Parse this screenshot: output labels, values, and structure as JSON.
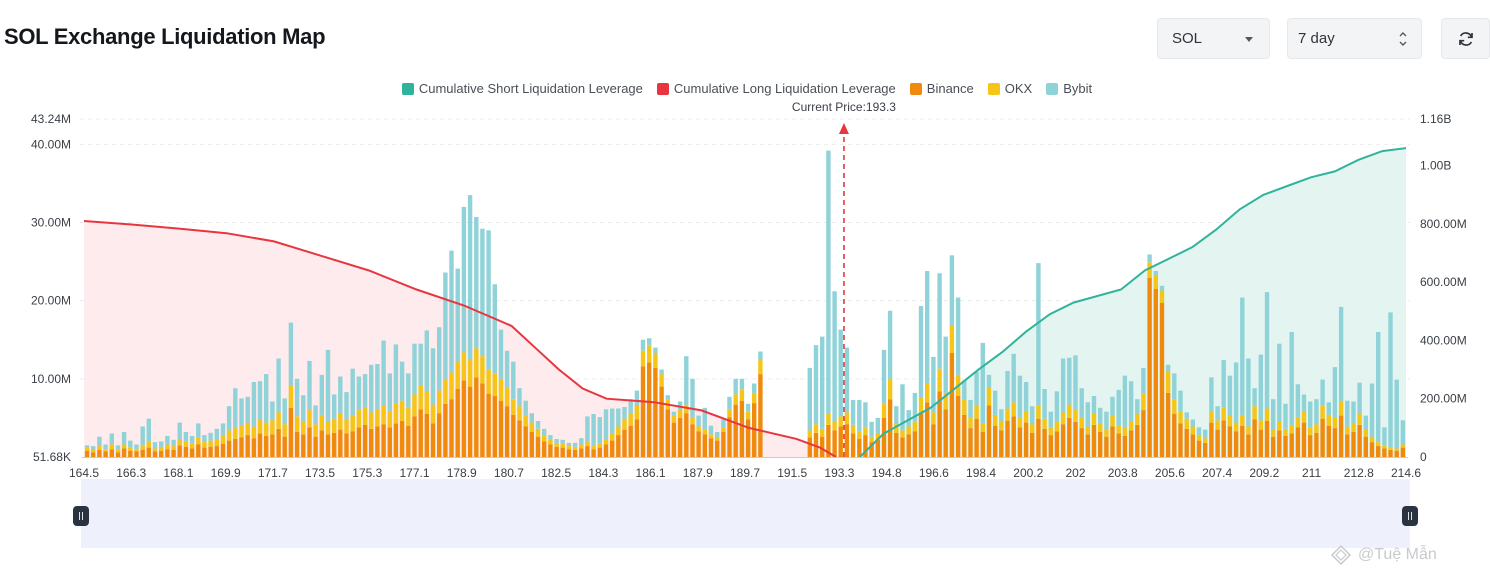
{
  "header": {
    "title": "SOL Exchange Liquidation Map",
    "symbol_value": "SOL",
    "range_value": "7 day"
  },
  "watermark": "@Tuệ Mẫn",
  "colors": {
    "short_cum": "#2fb39a",
    "long_cum": "#e8363f",
    "binance": "#f08a0d",
    "okx": "#f5c518",
    "bybit": "#8fd3d8",
    "current_price_line": "#e8363f"
  },
  "chart_data": {
    "type": "bar",
    "title": "SOL Exchange Liquidation Map",
    "legend": [
      "Cumulative Short Liquidation Leverage",
      "Cumulative Long Liquidation Leverage",
      "Binance",
      "OKX",
      "Bybit"
    ],
    "legend_position": "top-center",
    "current_price_label": "Current Price:193.3",
    "current_price": 193.3,
    "x_range": [
      164.5,
      214.6
    ],
    "x_ticks": [
      "164.5",
      "166.3",
      "168.1",
      "169.9",
      "171.7",
      "173.5",
      "175.3",
      "177.1",
      "178.9",
      "180.7",
      "182.5",
      "184.3",
      "186.1",
      "187.9",
      "189.7",
      "191.5",
      "193.3",
      "194.8",
      "196.6",
      "198.4",
      "200.2",
      "202",
      "203.8",
      "205.6",
      "207.4",
      "209.2",
      "211",
      "212.8",
      "214.6"
    ],
    "y_left_ticks": [
      "51.68K",
      "10.00M",
      "20.00M",
      "30.00M",
      "40.00M",
      "43.24M"
    ],
    "y_left_range": [
      0,
      43.24
    ],
    "y_left_unit": "M",
    "y_right_ticks": [
      "0",
      "200.00M",
      "400.00M",
      "600.00M",
      "800.00M",
      "1.00B",
      "1.16B"
    ],
    "y_right_range": [
      0,
      1160
    ],
    "y_right_unit": "M",
    "bars": {
      "binance": [
        0.8,
        0.6,
        0.9,
        0.7,
        1.0,
        0.6,
        1.1,
        0.8,
        0.7,
        0.9,
        1.2,
        0.7,
        0.8,
        1.0,
        0.9,
        1.5,
        1.3,
        1.1,
        1.6,
        1.2,
        1.3,
        1.4,
        1.7,
        2.1,
        2.3,
        2.5,
        2.8,
        2.4,
        3.0,
        2.7,
        2.9,
        3.6,
        2.6,
        6.3,
        3.2,
        2.9,
        3.8,
        2.6,
        3.4,
        2.9,
        3.1,
        3.5,
        3.0,
        3.3,
        3.8,
        4.1,
        3.6,
        3.9,
        4.2,
        3.8,
        4.3,
        4.6,
        4.0,
        5.2,
        6.1,
        5.5,
        4.3,
        5.6,
        6.8,
        7.4,
        8.7,
        9.8,
        9.0,
        10.2,
        9.4,
        8.1,
        7.8,
        7.2,
        6.5,
        5.4,
        4.7,
        3.9,
        3.2,
        2.6,
        2.0,
        1.6,
        1.3,
        1.2,
        1.0,
        0.9,
        1.1,
        1.4,
        1.0,
        1.2,
        1.6,
        2.1,
        2.8,
        3.5,
        4.0,
        4.8,
        11.6,
        12.1,
        11.4,
        9.0,
        6.1,
        4.4,
        5.0,
        5.6,
        4.2,
        3.3,
        2.9,
        2.4,
        2.1,
        3.2,
        5.1,
        6.7,
        7.2,
        4.8,
        6.9,
        10.6,
        0.0,
        0.0,
        0.0,
        0.0,
        0.0,
        0.0,
        0.0,
        2.5,
        3.1,
        2.6,
        4.1,
        3.4,
        3.9,
        4.2,
        3.0,
        2.3,
        2.8,
        1.9,
        2.2,
        5.0,
        7.4,
        3.1,
        2.5,
        2.9,
        3.3,
        5.6,
        7.0,
        4.2,
        8.4,
        6.1,
        13.3,
        7.8,
        5.4,
        3.7,
        4.9,
        3.2,
        6.6,
        4.0,
        3.4,
        4.6,
        5.2,
        3.8,
        4.4,
        3.1,
        4.9,
        3.6,
        2.8,
        3.3,
        4.2,
        5.0,
        4.5,
        3.7,
        2.9,
        4.1,
        3.2,
        2.6,
        3.9,
        3.0,
        2.7,
        3.4,
        4.1,
        6.0,
        22.9,
        21.5,
        19.7,
        8.2,
        5.5,
        4.3,
        3.6,
        2.9,
        2.1,
        1.8,
        4.4,
        3.5,
        4.7,
        3.9,
        3.3,
        4.0,
        2.9,
        4.8,
        3.5,
        4.6,
        2.6,
        3.4,
        2.7,
        3.0,
        3.8,
        4.4,
        2.8,
        3.1,
        4.9,
        4.0,
        3.7,
        5.3,
        2.9,
        3.2,
        4.1,
        2.6,
        1.9,
        1.4,
        1.1,
        0.9,
        0.8,
        1.2
      ],
      "okx": [
        0.4,
        0.3,
        0.5,
        0.3,
        0.6,
        0.4,
        0.5,
        0.4,
        0.3,
        0.6,
        0.8,
        0.4,
        0.5,
        0.6,
        0.5,
        0.8,
        0.7,
        0.6,
        0.9,
        0.7,
        0.8,
        0.9,
        1.0,
        1.3,
        1.4,
        1.6,
        1.6,
        1.5,
        1.8,
        1.7,
        1.8,
        2.1,
        1.6,
        2.8,
        2.0,
        1.7,
        2.2,
        1.6,
        2.0,
        1.7,
        1.8,
        2.0,
        1.8,
        2.0,
        2.2,
        2.3,
        2.1,
        2.2,
        2.4,
        2.1,
        2.5,
        2.6,
        2.3,
        2.8,
        3.0,
        2.9,
        2.4,
        2.9,
        3.2,
        3.4,
        3.5,
        3.6,
        3.4,
        3.7,
        3.5,
        3.1,
        2.9,
        2.7,
        2.4,
        2.0,
        1.8,
        1.5,
        1.2,
        1.0,
        0.8,
        0.6,
        0.5,
        0.5,
        0.4,
        0.4,
        0.5,
        0.6,
        0.4,
        0.5,
        0.7,
        0.9,
        1.1,
        1.4,
        1.6,
        1.8,
        2.0,
        2.2,
        1.9,
        1.6,
        1.2,
        0.9,
        1.0,
        1.1,
        0.8,
        0.6,
        0.6,
        0.5,
        0.4,
        0.6,
        1.0,
        1.3,
        1.4,
        1.0,
        1.3,
        1.8,
        0.0,
        0.0,
        0.0,
        0.0,
        0.0,
        0.0,
        0.0,
        0.9,
        1.1,
        1.0,
        1.4,
        1.2,
        1.3,
        1.5,
        1.1,
        0.9,
        1.0,
        0.7,
        0.8,
        1.8,
        2.6,
        1.1,
        0.9,
        1.0,
        1.2,
        2.0,
        2.4,
        1.5,
        2.9,
        2.1,
        3.6,
        2.7,
        1.9,
        1.3,
        1.7,
        1.1,
        2.3,
        1.4,
        1.2,
        1.6,
        1.8,
        1.3,
        1.5,
        1.1,
        1.7,
        1.3,
        1.0,
        1.2,
        1.5,
        1.7,
        1.6,
        1.3,
        1.0,
        1.4,
        1.1,
        0.9,
        1.4,
        1.1,
        1.0,
        1.2,
        1.4,
        2.1,
        2.0,
        1.8,
        1.6,
        2.8,
        1.9,
        1.5,
        1.3,
        1.0,
        0.7,
        0.6,
        1.5,
        1.2,
        1.6,
        1.4,
        1.1,
        1.4,
        1.0,
        1.7,
        1.2,
        1.6,
        0.9,
        1.2,
        0.9,
        1.0,
        1.3,
        1.5,
        1.0,
        1.1,
        1.7,
        1.4,
        1.3,
        1.8,
        1.0,
        1.1,
        1.4,
        0.9,
        0.7,
        0.5,
        0.4,
        0.3,
        0.3,
        0.4
      ],
      "bybit": [
        0.3,
        0.5,
        1.2,
        0.6,
        1.4,
        0.5,
        1.6,
        0.9,
        0.6,
        2.4,
        2.9,
        0.8,
        0.7,
        1.1,
        0.8,
        2.1,
        1.2,
        1.0,
        1.8,
        0.9,
        1.0,
        1.3,
        1.6,
        3.1,
        5.1,
        3.4,
        3.3,
        5.7,
        4.9,
        6.2,
        2.4,
        6.9,
        3.3,
        8.1,
        4.8,
        3.3,
        6.3,
        2.4,
        5.1,
        9.1,
        3.1,
        4.8,
        3.5,
        6.0,
        4.3,
        4.2,
        6.1,
        5.8,
        8.3,
        4.8,
        7.6,
        5.0,
        4.4,
        6.5,
        5.4,
        7.8,
        7.2,
        8.1,
        13.6,
        15.6,
        11.9,
        18.6,
        21.1,
        16.8,
        16.3,
        17.8,
        11.4,
        6.4,
        4.7,
        4.8,
        2.3,
        1.8,
        1.2,
        1.0,
        0.8,
        0.6,
        0.5,
        0.5,
        0.4,
        0.5,
        0.8,
        3.2,
        4.1,
        3.4,
        3.8,
        3.2,
        2.3,
        1.5,
        1.8,
        1.9,
        1.4,
        0.9,
        0.7,
        0.6,
        0.6,
        0.5,
        1.1,
        6.2,
        5.0,
        1.4,
        2.8,
        1.1,
        0.7,
        1.0,
        1.6,
        2.0,
        1.4,
        1.0,
        1.2,
        1.1,
        0.0,
        0.0,
        0.0,
        0.0,
        0.0,
        0.0,
        0.0,
        8.0,
        10.1,
        11.8,
        33.7,
        16.6,
        11.1,
        8.3,
        3.2,
        4.1,
        3.2,
        1.9,
        2.0,
        6.9,
        8.7,
        2.3,
        5.9,
        2.1,
        3.7,
        11.7,
        14.4,
        7.1,
        12.2,
        7.2,
        8.9,
        9.9,
        2.5,
        2.3,
        4.3,
        10.3,
        1.6,
        3.1,
        1.5,
        4.8,
        6.2,
        5.3,
        3.7,
        2.3,
        18.2,
        3.8,
        2.0,
        3.9,
        6.9,
        6.0,
        6.9,
        3.8,
        3.1,
        2.3,
        2.0,
        2.3,
        2.4,
        4.5,
        6.7,
        5.1,
        1.9,
        3.3,
        1.0,
        0.5,
        0.6,
        0.8,
        3.3,
        2.7,
        0.8,
        0.9,
        1.0,
        1.1,
        4.3,
        1.8,
        6.1,
        5.1,
        7.7,
        15.0,
        8.7,
        2.3,
        8.4,
        14.9,
        3.9,
        9.9,
        3.2,
        12.0,
        4.2,
        2.1,
        3.3,
        3.2,
        3.3,
        1.6,
        6.5,
        12.1,
        3.3,
        2.8,
        4.0,
        1.8,
        6.8,
        14.1,
        2.3,
        17.3,
        8.8,
        3.1,
        4.2,
        2.3,
        2.1,
        5.0
      ]
    },
    "series": [
      {
        "name": "Cumulative Long Liquidation Leverage",
        "axis": "right",
        "x": [
          164.5,
          166.3,
          168.1,
          169.9,
          171.7,
          173.5,
          175.3,
          177.1,
          178.9,
          180.7,
          181.6,
          182.5,
          183.4,
          184.3,
          186.1,
          187.9,
          189.7,
          191.5,
          192.4,
          193.0
        ],
        "values": [
          810,
          798,
          784,
          768,
          740,
          690,
          640,
          575,
          520,
          450,
          375,
          300,
          235,
          200,
          188,
          160,
          100,
          62,
          32,
          0
        ]
      },
      {
        "name": "Cumulative Short Liquidation Leverage",
        "axis": "right",
        "x": [
          193.9,
          194.8,
          196.6,
          198.4,
          199.3,
          200.2,
          201.1,
          202,
          203.8,
          204.7,
          205.6,
          206.5,
          207.4,
          208.3,
          209.2,
          210.1,
          211,
          211.9,
          212.8,
          213.7,
          214.6
        ],
        "values": [
          0,
          80,
          170,
          300,
          360,
          430,
          490,
          530,
          575,
          640,
          680,
          720,
          780,
          850,
          900,
          930,
          960,
          980,
          1020,
          1050,
          1060
        ]
      }
    ]
  }
}
